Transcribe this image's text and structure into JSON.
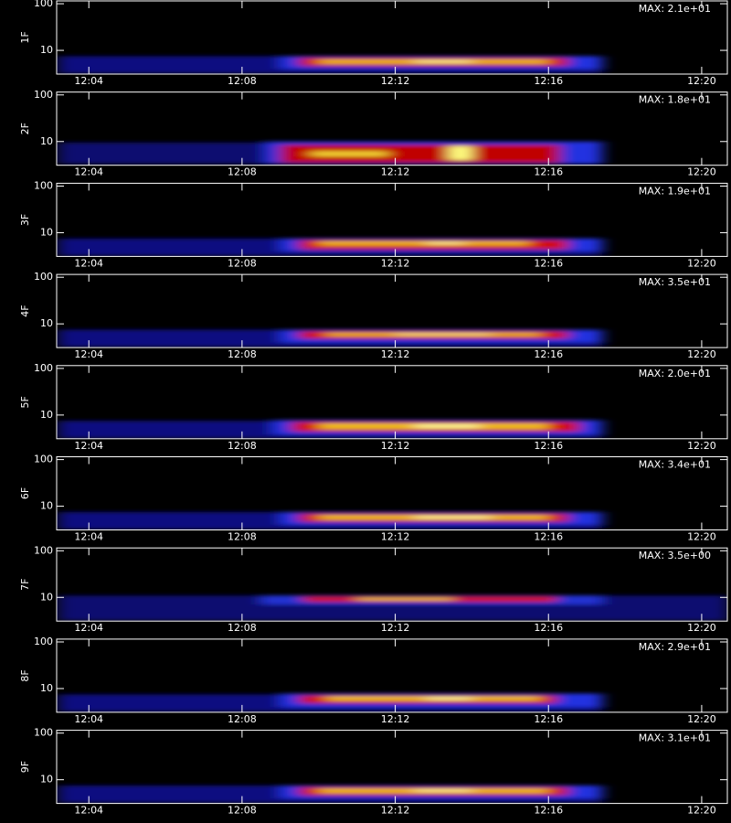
{
  "chart_data": [
    {
      "type": "heatmap",
      "ylabel": "1F",
      "annotation": "MAX: 2.1e+01",
      "log_y": true,
      "xlim": [
        3.16,
        20.67
      ],
      "ylim": [
        3.1,
        115
      ],
      "xticks": [
        {
          "value": 4,
          "label": "12:04"
        },
        {
          "value": 8,
          "label": "12:08"
        },
        {
          "value": 12,
          "label": "12:12"
        },
        {
          "value": 16,
          "label": "12:16"
        },
        {
          "value": 20,
          "label": "12:20"
        }
      ],
      "yticks": [
        10,
        100
      ],
      "layers": [
        {
          "x": [
            3.2,
            17.4
          ],
          "y": [
            3.2,
            7.5
          ],
          "color": "#101080"
        },
        {
          "x": [
            9.0,
            17.4
          ],
          "y": [
            4.0,
            7.5
          ],
          "color": "#2030e0"
        },
        {
          "x": [
            9.5,
            16.5
          ],
          "y": [
            4.6,
            7.0
          ],
          "color": "#d01010"
        },
        {
          "x": [
            10.0,
            16.0
          ],
          "y": [
            5.2,
            6.3
          ],
          "color": "#f0c020"
        },
        {
          "x": [
            12.5,
            14.0
          ],
          "y": [
            5.4,
            6.1
          ],
          "color": "#ffffa0"
        }
      ]
    },
    {
      "type": "heatmap",
      "ylabel": "2F",
      "annotation": "MAX: 1.8e+01",
      "log_y": true,
      "xlim": [
        3.16,
        20.67
      ],
      "ylim": [
        3.1,
        115
      ],
      "xticks": [
        {
          "value": 4,
          "label": "12:04"
        },
        {
          "value": 8,
          "label": "12:08"
        },
        {
          "value": 12,
          "label": "12:12"
        },
        {
          "value": 16,
          "label": "12:16"
        },
        {
          "value": 20,
          "label": "12:20"
        }
      ],
      "yticks": [
        10,
        100
      ],
      "layers": [
        {
          "x": [
            3.2,
            17.4
          ],
          "y": [
            3.3,
            9.5
          ],
          "color": "#101070"
        },
        {
          "x": [
            8.6,
            17.4
          ],
          "y": [
            3.3,
            10
          ],
          "color": "#2030e0"
        },
        {
          "x": [
            9.0,
            16.3
          ],
          "y": [
            3.5,
            8.5
          ],
          "color": "#c00000"
        },
        {
          "x": [
            9.8,
            11.8
          ],
          "y": [
            4.8,
            6.2
          ],
          "color": "#f0d030"
        },
        {
          "x": [
            13.4,
            14.0
          ],
          "y": [
            4.0,
            8.0
          ],
          "color": "#ffff80"
        }
      ]
    },
    {
      "type": "heatmap",
      "ylabel": "3F",
      "annotation": "MAX: 1.9e+01",
      "log_y": true,
      "xlim": [
        3.16,
        20.67
      ],
      "ylim": [
        3.1,
        115
      ],
      "xticks": [
        {
          "value": 4,
          "label": "12:04"
        },
        {
          "value": 8,
          "label": "12:08"
        },
        {
          "value": 12,
          "label": "12:12"
        },
        {
          "value": 16,
          "label": "12:16"
        },
        {
          "value": 20,
          "label": "12:20"
        }
      ],
      "yticks": [
        10,
        100
      ],
      "layers": [
        {
          "x": [
            3.2,
            17.4
          ],
          "y": [
            3.2,
            7.5
          ],
          "color": "#101080"
        },
        {
          "x": [
            9.0,
            17.4
          ],
          "y": [
            4.0,
            7.5
          ],
          "color": "#2030e0"
        },
        {
          "x": [
            9.5,
            16.5
          ],
          "y": [
            4.4,
            7.0
          ],
          "color": "#d01010"
        },
        {
          "x": [
            10.0,
            15.5
          ],
          "y": [
            5.4,
            6.5
          ],
          "color": "#f0c020"
        },
        {
          "x": [
            12.8,
            13.8
          ],
          "y": [
            5.6,
            6.3
          ],
          "color": "#ffffa0"
        }
      ]
    },
    {
      "type": "heatmap",
      "ylabel": "4F",
      "annotation": "MAX: 3.5e+01",
      "log_y": true,
      "xlim": [
        3.16,
        20.67
      ],
      "ylim": [
        3.1,
        115
      ],
      "xticks": [
        {
          "value": 4,
          "label": "12:04"
        },
        {
          "value": 8,
          "label": "12:08"
        },
        {
          "value": 12,
          "label": "12:12"
        },
        {
          "value": 16,
          "label": "12:16"
        },
        {
          "value": 20,
          "label": "12:20"
        }
      ],
      "yticks": [
        10,
        100
      ],
      "layers": [
        {
          "x": [
            3.2,
            17.4
          ],
          "y": [
            3.2,
            7.5
          ],
          "color": "#101080"
        },
        {
          "x": [
            9.0,
            17.4
          ],
          "y": [
            4.0,
            7.5
          ],
          "color": "#2030e0"
        },
        {
          "x": [
            9.5,
            16.5
          ],
          "y": [
            4.8,
            7.0
          ],
          "color": "#d01010"
        },
        {
          "x": [
            10.2,
            15.8
          ],
          "y": [
            5.5,
            6.4
          ],
          "color": "#f0c020"
        },
        {
          "x": [
            12.0,
            14.5
          ],
          "y": [
            5.7,
            6.2
          ],
          "color": "#ffffa0"
        }
      ]
    },
    {
      "type": "heatmap",
      "ylabel": "5F",
      "annotation": "MAX: 2.0e+01",
      "log_y": true,
      "xlim": [
        3.16,
        20.67
      ],
      "ylim": [
        3.1,
        115
      ],
      "xticks": [
        {
          "value": 4,
          "label": "12:04"
        },
        {
          "value": 8,
          "label": "12:08"
        },
        {
          "value": 12,
          "label": "12:12"
        },
        {
          "value": 16,
          "label": "12:16"
        },
        {
          "value": 20,
          "label": "12:20"
        }
      ],
      "yticks": [
        10,
        100
      ],
      "layers": [
        {
          "x": [
            3.2,
            17.4
          ],
          "y": [
            3.2,
            7.5
          ],
          "color": "#101080"
        },
        {
          "x": [
            8.8,
            17.4
          ],
          "y": [
            3.8,
            7.8
          ],
          "color": "#2030e0"
        },
        {
          "x": [
            9.3,
            16.8
          ],
          "y": [
            4.4,
            7.2
          ],
          "color": "#d01010"
        },
        {
          "x": [
            10.0,
            16.0
          ],
          "y": [
            5.0,
            6.6
          ],
          "color": "#f0c020"
        },
        {
          "x": [
            12.5,
            14.2
          ],
          "y": [
            5.3,
            6.3
          ],
          "color": "#ffffa0"
        }
      ]
    },
    {
      "type": "heatmap",
      "ylabel": "6F",
      "annotation": "MAX: 3.4e+01",
      "log_y": true,
      "xlim": [
        3.16,
        20.67
      ],
      "ylim": [
        3.1,
        115
      ],
      "xticks": [
        {
          "value": 4,
          "label": "12:04"
        },
        {
          "value": 8,
          "label": "12:08"
        },
        {
          "value": 12,
          "label": "12:12"
        },
        {
          "value": 16,
          "label": "12:16"
        },
        {
          "value": 20,
          "label": "12:20"
        }
      ],
      "yticks": [
        10,
        100
      ],
      "layers": [
        {
          "x": [
            3.2,
            17.4
          ],
          "y": [
            3.2,
            7.5
          ],
          "color": "#101080"
        },
        {
          "x": [
            9.0,
            17.4
          ],
          "y": [
            4.0,
            7.5
          ],
          "color": "#2030e0"
        },
        {
          "x": [
            9.5,
            16.5
          ],
          "y": [
            4.6,
            7.0
          ],
          "color": "#d01010"
        },
        {
          "x": [
            10.0,
            16.0
          ],
          "y": [
            5.2,
            6.4
          ],
          "color": "#f0c020"
        },
        {
          "x": [
            12.5,
            14.5
          ],
          "y": [
            5.4,
            6.2
          ],
          "color": "#ffffa0"
        }
      ]
    },
    {
      "type": "heatmap",
      "ylabel": "7F",
      "annotation": "MAX: 3.5e+00",
      "log_y": true,
      "xlim": [
        3.16,
        20.67
      ],
      "ylim": [
        3.1,
        115
      ],
      "xticks": [
        {
          "value": 4,
          "label": "12:04"
        },
        {
          "value": 8,
          "label": "12:08"
        },
        {
          "value": 12,
          "label": "12:12"
        },
        {
          "value": 16,
          "label": "12:16"
        },
        {
          "value": 20,
          "label": "12:20"
        }
      ],
      "yticks": [
        10,
        100
      ],
      "layers": [
        {
          "x": [
            3.2,
            20.67
          ],
          "y": [
            3.2,
            11
          ],
          "color": "#0a0a70"
        },
        {
          "x": [
            8.5,
            17.4
          ],
          "y": [
            7.0,
            11
          ],
          "color": "#2030d0"
        },
        {
          "x": [
            9.6,
            16.2
          ],
          "y": [
            8.0,
            10.5
          ],
          "color": "#d01010"
        },
        {
          "x": [
            11.0,
            13.5
          ],
          "y": [
            8.6,
            10.0
          ],
          "color": "#f0c020"
        }
      ]
    },
    {
      "type": "heatmap",
      "ylabel": "8F",
      "annotation": "MAX: 2.9e+01",
      "log_y": true,
      "xlim": [
        3.16,
        20.67
      ],
      "ylim": [
        3.1,
        115
      ],
      "xticks": [
        {
          "value": 4,
          "label": "12:04"
        },
        {
          "value": 8,
          "label": "12:08"
        },
        {
          "value": 12,
          "label": "12:12"
        },
        {
          "value": 16,
          "label": "12:16"
        },
        {
          "value": 20,
          "label": "12:20"
        }
      ],
      "yticks": [
        10,
        100
      ],
      "layers": [
        {
          "x": [
            3.2,
            17.4
          ],
          "y": [
            3.2,
            7.5
          ],
          "color": "#101080"
        },
        {
          "x": [
            9.0,
            17.4
          ],
          "y": [
            4.0,
            7.8
          ],
          "color": "#2030e0"
        },
        {
          "x": [
            9.5,
            16.2
          ],
          "y": [
            4.8,
            7.2
          ],
          "color": "#d01010"
        },
        {
          "x": [
            10.2,
            15.8
          ],
          "y": [
            5.5,
            6.8
          ],
          "color": "#f0c020"
        },
        {
          "x": [
            12.8,
            14.0
          ],
          "y": [
            5.7,
            6.5
          ],
          "color": "#ffffa0"
        }
      ]
    },
    {
      "type": "heatmap",
      "ylabel": "9F",
      "annotation": "MAX: 3.1e+01",
      "log_y": true,
      "xlim": [
        3.16,
        20.67
      ],
      "ylim": [
        3.1,
        115
      ],
      "xticks": [
        {
          "value": 4,
          "label": "12:04"
        },
        {
          "value": 8,
          "label": "12:08"
        },
        {
          "value": 12,
          "label": "12:12"
        },
        {
          "value": 16,
          "label": "12:16"
        },
        {
          "value": 20,
          "label": "12:20"
        }
      ],
      "yticks": [
        10,
        100
      ],
      "layers": [
        {
          "x": [
            3.2,
            17.4
          ],
          "y": [
            3.2,
            7.5
          ],
          "color": "#101080"
        },
        {
          "x": [
            9.0,
            17.4
          ],
          "y": [
            4.0,
            7.5
          ],
          "color": "#2030e0"
        },
        {
          "x": [
            9.5,
            16.5
          ],
          "y": [
            4.6,
            7.0
          ],
          "color": "#d01010"
        },
        {
          "x": [
            10.0,
            16.0
          ],
          "y": [
            5.2,
            6.4
          ],
          "color": "#f0c020"
        },
        {
          "x": [
            12.5,
            14.0
          ],
          "y": [
            5.5,
            6.2
          ],
          "color": "#ffffa0"
        }
      ]
    }
  ]
}
